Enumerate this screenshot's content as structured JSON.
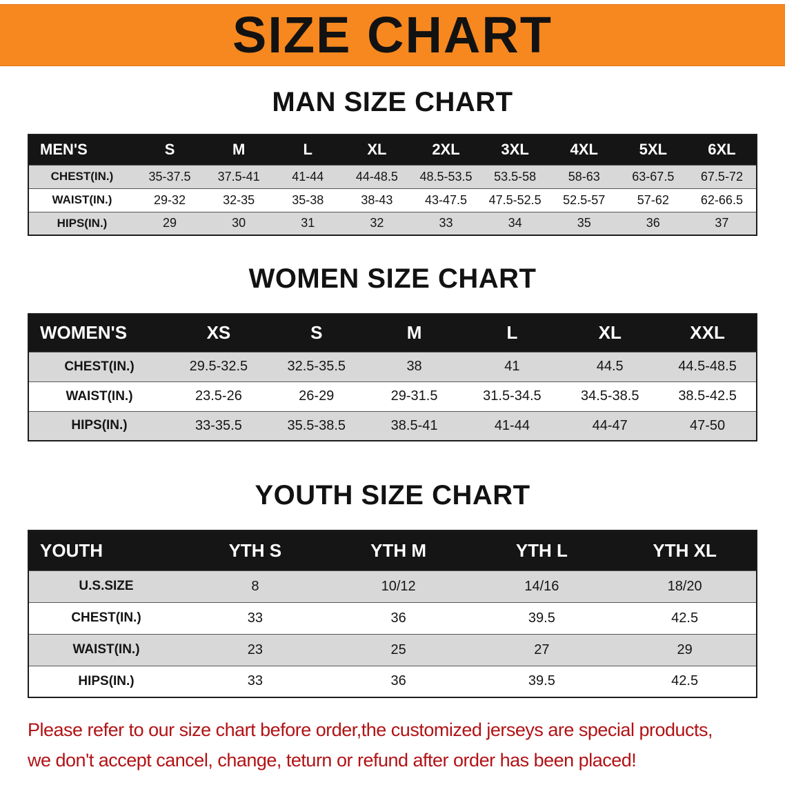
{
  "banner": {
    "title": "SIZE CHART"
  },
  "colors": {
    "banner_bg": "#F6881F",
    "header_row_bg": "#151515",
    "shaded_row_bg": "#D8D8D8",
    "footer_text": "#B21215"
  },
  "sections": [
    {
      "id": "men",
      "heading": "MAN SIZE CHART",
      "label_col_width": 155,
      "header": [
        "MEN'S",
        "S",
        "M",
        "L",
        "XL",
        "2XL",
        "3XL",
        "4XL",
        "5XL",
        "6XL"
      ],
      "rows": [
        {
          "label": "CHEST(IN.)",
          "values": [
            "35-37.5",
            "37.5-41",
            "41-44",
            "44-48.5",
            "48.5-53.5",
            "53.5-58",
            "58-63",
            "63-67.5",
            "67.5-72"
          ]
        },
        {
          "label": "WAIST(IN.)",
          "values": [
            "29-32",
            "32-35",
            "35-38",
            "38-43",
            "43-47.5",
            "47.5-52.5",
            "52.5-57",
            "57-62",
            "62-66.5"
          ]
        },
        {
          "label": "HIPS(IN.)",
          "values": [
            "29",
            "30",
            "31",
            "32",
            "33",
            "34",
            "35",
            "36",
            "37"
          ]
        }
      ]
    },
    {
      "id": "women",
      "heading": "WOMEN SIZE CHART",
      "label_col_width": 205,
      "header": [
        "WOMEN'S",
        "XS",
        "S",
        "M",
        "L",
        "XL",
        "XXL"
      ],
      "rows": [
        {
          "label": "CHEST(IN.)",
          "values": [
            "29.5-32.5",
            "32.5-35.5",
            "38",
            "41",
            "44.5",
            "44.5-48.5"
          ]
        },
        {
          "label": "WAIST(IN.)",
          "values": [
            "23.5-26",
            "26-29",
            "29-31.5",
            "31.5-34.5",
            "34.5-38.5",
            "38.5-42.5"
          ]
        },
        {
          "label": "HIPS(IN.)",
          "values": [
            "33-35.5",
            "35.5-38.5",
            "38.5-41",
            "41-44",
            "44-47",
            "47-50"
          ]
        }
      ]
    },
    {
      "id": "youth",
      "heading": "YOUTH SIZE CHART",
      "label_col_width": 225,
      "header": [
        "YOUTH",
        "YTH S",
        "YTH M",
        "YTH L",
        "YTH XL"
      ],
      "rows": [
        {
          "label": "U.S.SIZE",
          "values": [
            "8",
            "10/12",
            "14/16",
            "18/20"
          ]
        },
        {
          "label": "CHEST(IN.)",
          "values": [
            "33",
            "36",
            "39.5",
            "42.5"
          ]
        },
        {
          "label": "WAIST(IN.)",
          "values": [
            "23",
            "25",
            "27",
            "29"
          ]
        },
        {
          "label": "HIPS(IN.)",
          "values": [
            "33",
            "36",
            "39.5",
            "42.5"
          ]
        }
      ]
    }
  ],
  "footer": {
    "line1": "Please refer to our size chart before order,the customized jerseys are special products,",
    "line2": "we don't accept cancel, change, teturn or refund after order has been placed!"
  }
}
